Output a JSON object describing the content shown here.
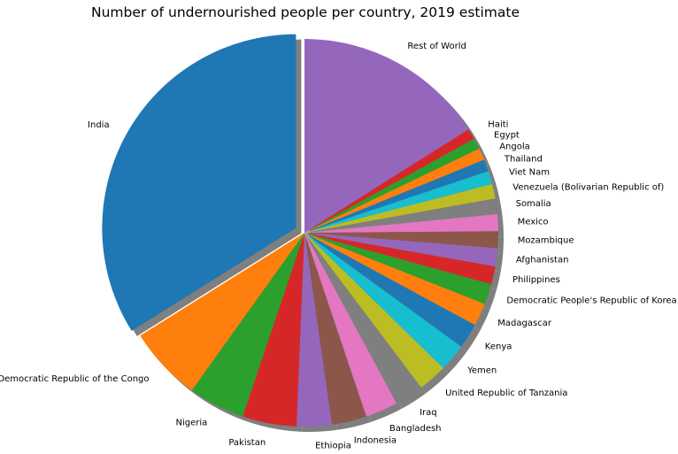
{
  "chart_data": {
    "type": "pie",
    "title": "Number of undernourished people per country, 2019 estimate",
    "start_angle_deg": 90,
    "counterclock": false,
    "shadow": true,
    "exploded": [
      "India"
    ],
    "slices": [
      {
        "label": "Rest of World",
        "value": 16.0,
        "color": "#9467bd"
      },
      {
        "label": "Haiti",
        "value": 0.9,
        "color": "#d62728"
      },
      {
        "label": "Egypt",
        "value": 0.9,
        "color": "#2ca02c"
      },
      {
        "label": "Angola",
        "value": 1.0,
        "color": "#ff7f0e"
      },
      {
        "label": "Thailand",
        "value": 1.0,
        "color": "#1f77b4"
      },
      {
        "label": "Viet Nam",
        "value": 1.1,
        "color": "#17becf"
      },
      {
        "label": "Venezuela (Bolivarian Republic of)",
        "value": 1.2,
        "color": "#bcbd22"
      },
      {
        "label": "Somalia",
        "value": 1.3,
        "color": "#7f7f7f"
      },
      {
        "label": "Mexico",
        "value": 1.4,
        "color": "#e377c2"
      },
      {
        "label": "Mozambique",
        "value": 1.4,
        "color": "#8c564b"
      },
      {
        "label": "Afghanistan",
        "value": 1.5,
        "color": "#9467bd"
      },
      {
        "label": "Philippines",
        "value": 1.5,
        "color": "#d62728"
      },
      {
        "label": "Democratic People's Republic of Korea",
        "value": 1.7,
        "color": "#2ca02c"
      },
      {
        "label": "Madagascar",
        "value": 1.9,
        "color": "#ff7f0e"
      },
      {
        "label": "Kenya",
        "value": 2.1,
        "color": "#1f77b4"
      },
      {
        "label": "Yemen",
        "value": 2.3,
        "color": "#17becf"
      },
      {
        "label": "United Republic of Tanzania",
        "value": 2.4,
        "color": "#bcbd22"
      },
      {
        "label": "Iraq",
        "value": 2.4,
        "color": "#7f7f7f"
      },
      {
        "label": "Bangladesh",
        "value": 2.7,
        "color": "#e377c2"
      },
      {
        "label": "Indonesia",
        "value": 2.9,
        "color": "#8c564b"
      },
      {
        "label": "Ethiopia",
        "value": 2.9,
        "color": "#9467bd"
      },
      {
        "label": "Pakistan",
        "value": 4.5,
        "color": "#d62728"
      },
      {
        "label": "Nigeria",
        "value": 4.7,
        "color": "#2ca02c"
      },
      {
        "label": "Democratic Republic of the Congo",
        "value": 6.2,
        "color": "#ff7f0e"
      },
      {
        "label": "India",
        "value": 33.8,
        "color": "#1f77b4"
      }
    ]
  }
}
